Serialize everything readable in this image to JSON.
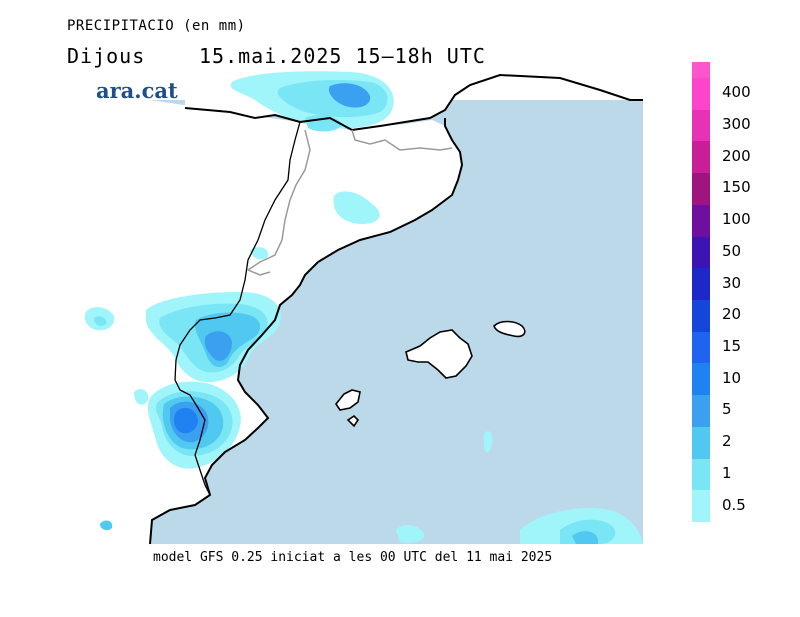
{
  "header": {
    "title": "PRECIPITACIO (en mm)",
    "day": "Dijous",
    "datetime": "15.mai.2025  15–18h  UTC"
  },
  "logo_text": "ara.cat",
  "footer": "model GFS 0.25 iniciat a les 00 UTC del 11 mai 2025",
  "legend": {
    "levels": [
      {
        "label": "400",
        "color": "#ff44cc"
      },
      {
        "label": "300",
        "color": "#e632b4"
      },
      {
        "label": "200",
        "color": "#c81e96"
      },
      {
        "label": "150",
        "color": "#a0147f"
      },
      {
        "label": "100",
        "color": "#6e0fa0"
      },
      {
        "label": "50",
        "color": "#3c14b4"
      },
      {
        "label": "30",
        "color": "#1e28c8"
      },
      {
        "label": "20",
        "color": "#1446dc"
      },
      {
        "label": "15",
        "color": "#1e64f0"
      },
      {
        "label": "10",
        "color": "#1e82f0"
      },
      {
        "label": "5",
        "color": "#3ca0f0"
      },
      {
        "label": "2",
        "color": "#50c8f0"
      },
      {
        "label": "1",
        "color": "#7ae6f5"
      },
      {
        "label": "0.5",
        "color": "#a0f5fa"
      }
    ],
    "top_color": "#ff55cc"
  },
  "colors": {
    "sea": "#bcd9ea",
    "land": "#ffffff"
  }
}
